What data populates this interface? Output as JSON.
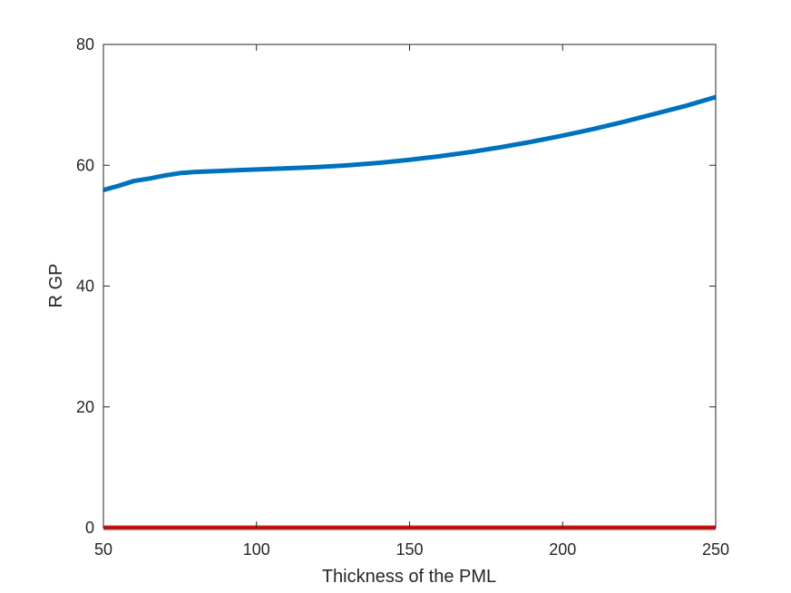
{
  "chart_data": {
    "type": "line",
    "title": "",
    "xlabel": "Thickness of the PML",
    "ylabel": "R GP",
    "xlim": [
      50,
      250
    ],
    "ylim": [
      0,
      80
    ],
    "xticks": [
      50,
      100,
      150,
      200,
      250
    ],
    "yticks": [
      0,
      20,
      40,
      60,
      80
    ],
    "grid": false,
    "box": true,
    "series": [
      {
        "color": "#0072BD",
        "x": [
          50,
          55,
          60,
          65,
          70,
          75,
          80,
          90,
          100,
          110,
          120,
          130,
          140,
          150,
          160,
          170,
          180,
          190,
          200,
          210,
          220,
          230,
          240,
          250
        ],
        "y": [
          55.9,
          56.6,
          57.4,
          57.8,
          58.3,
          58.7,
          58.9,
          59.1,
          59.3,
          59.5,
          59.7,
          60.0,
          60.4,
          60.9,
          61.5,
          62.2,
          63.0,
          63.9,
          64.9,
          66.0,
          67.2,
          68.5,
          69.8,
          71.3
        ]
      },
      {
        "color": "#E6191A",
        "x": [
          50,
          100,
          150,
          200,
          250
        ],
        "y": [
          0,
          0,
          0,
          0,
          0
        ]
      }
    ]
  }
}
